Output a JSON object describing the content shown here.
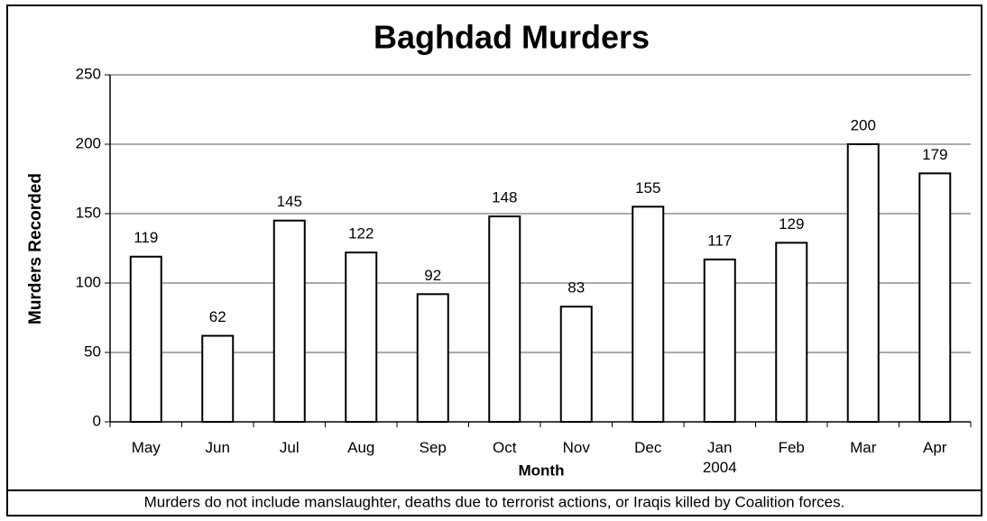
{
  "chart_data": {
    "type": "bar",
    "title": "Baghdad Murders",
    "x_label": "Month",
    "y_label": "Murders Recorded",
    "categories": [
      "May",
      "Jun",
      "Jul",
      "Aug",
      "Sep",
      "Oct",
      "Nov",
      "Dec",
      "Jan\n2004",
      "Feb",
      "Mar",
      "Apr"
    ],
    "values": [
      119,
      62,
      145,
      122,
      92,
      148,
      83,
      155,
      117,
      129,
      200,
      179
    ],
    "color": "#ffffff",
    "ylim": [
      0,
      250
    ],
    "yticks": [
      0,
      50,
      100,
      150,
      200,
      250
    ],
    "grid": true,
    "footnote": "Murders do not include manslaughter, deaths due to terrorist actions, or Iraqis killed by Coalition forces."
  }
}
